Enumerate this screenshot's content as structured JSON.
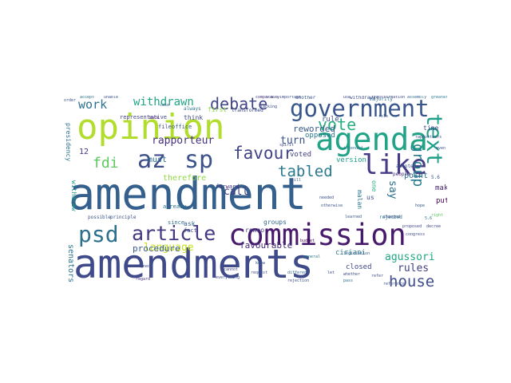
{
  "wordcloud": {
    "words": [
      {
        "text": "amendment",
        "color": "#35608d"
      },
      {
        "text": "amendments",
        "color": "#3e4a89"
      },
      {
        "text": "opinion",
        "color": "#b2dd2d"
      },
      {
        "text": "commission",
        "color": "#481a6c"
      },
      {
        "text": "agenda",
        "color": "#20a386"
      },
      {
        "text": "government",
        "color": "#39568c"
      },
      {
        "text": "az",
        "color": "#3d4e8a"
      },
      {
        "text": "sp",
        "color": "#3b528b"
      },
      {
        "text": "psd",
        "color": "#2d708e"
      },
      {
        "text": "article",
        "color": "#453781"
      },
      {
        "text": "text",
        "color": "#1f9e89"
      },
      {
        "text": "like",
        "color": "#443b84"
      },
      {
        "text": "vote",
        "color": "#29af7f"
      },
      {
        "text": "favour",
        "color": "#414487"
      },
      {
        "text": "debate",
        "color": "#404688"
      },
      {
        "text": "house",
        "color": "#3e4c8a"
      },
      {
        "text": "tabled",
        "color": "#2a788e"
      },
      {
        "text": "withdrawn",
        "color": "#22a785"
      },
      {
        "text": "work",
        "color": "#2c728e"
      },
      {
        "text": "fdi",
        "color": "#5ec962"
      },
      {
        "text": "group",
        "color": "#287c8e"
      },
      {
        "text": "language",
        "color": "#c8e020"
      },
      {
        "text": "agussori",
        "color": "#22a884"
      },
      {
        "text": "rules",
        "color": "#424186"
      },
      {
        "text": "rapporteur",
        "color": "#46327e"
      },
      {
        "text": "call",
        "color": "#404387"
      },
      {
        "text": "turn",
        "color": "#3b518b"
      },
      {
        "text": "say",
        "color": "#2e6e8e"
      },
      {
        "text": "procedure",
        "color": "#365c8d"
      },
      {
        "text": "favourable",
        "color": "#472c7a"
      },
      {
        "text": "reworded",
        "color": "#38588c"
      },
      {
        "text": "must",
        "color": "#2f6b8e"
      },
      {
        "text": "therefore",
        "color": "#90d743"
      },
      {
        "text": "senators",
        "color": "#2c738e"
      },
      {
        "text": "point",
        "color": "#306a8e"
      },
      {
        "text": "ciriani",
        "color": "#2a768e"
      },
      {
        "text": "closed",
        "color": "#3f4889"
      },
      {
        "text": "make",
        "color": "#482475"
      },
      {
        "text": "put",
        "color": "#440154"
      },
      {
        "text": "voted",
        "color": "#414287"
      },
      {
        "text": "version",
        "color": "#1fa088"
      },
      {
        "text": "opposed",
        "color": "#2b758e"
      },
      {
        "text": "rule",
        "color": "#3a548c"
      },
      {
        "text": "time",
        "color": "#3f4788"
      },
      {
        "text": "withdraw",
        "color": "#1f998a"
      },
      {
        "text": "ask",
        "color": "#32658e"
      },
      {
        "text": "groups",
        "color": "#31668e"
      },
      {
        "text": "romeo",
        "color": "#443983"
      },
      {
        "text": "one",
        "color": "#2ab07f"
      },
      {
        "text": "us",
        "color": "#3c4f8a"
      },
      {
        "text": "presidency",
        "color": "#2c728e"
      },
      {
        "text": "12",
        "color": "#463480"
      },
      {
        "text": "think",
        "color": "#3e4a89"
      },
      {
        "text": "first",
        "color": "#90d743"
      },
      {
        "text": "already",
        "color": "#2d708e"
      },
      {
        "text": "fact",
        "color": "#3b528b"
      },
      {
        "text": "since",
        "color": "#2f6c8e"
      },
      {
        "text": "forward",
        "color": "#46307e"
      },
      {
        "text": "office",
        "color": "#365d8d"
      },
      {
        "text": "file",
        "color": "#3d4d8a"
      },
      {
        "text": "representative",
        "color": "#404588"
      },
      {
        "text": "transformed",
        "color": "#3e4989"
      },
      {
        "text": "another",
        "color": "#3a548c"
      },
      {
        "text": "majority",
        "color": "#2c718e"
      },
      {
        "text": "withdrawal",
        "color": "#3d4e8a"
      },
      {
        "text": "people",
        "color": "#482576"
      },
      {
        "text": "adopted",
        "color": "#3c508b"
      },
      {
        "text": "rejected",
        "color": "#2b748e"
      },
      {
        "text": "possible",
        "color": "#39568c"
      },
      {
        "text": "principle",
        "color": "#3d4d8a"
      },
      {
        "text": "malan",
        "color": "#2b758e"
      },
      {
        "text": "legislation",
        "color": "#355f8d"
      },
      {
        "text": "otherwise",
        "color": "#3b528b"
      },
      {
        "text": "budget",
        "color": "#440154"
      },
      {
        "text": "always",
        "color": "#2c728e"
      },
      {
        "text": "changed",
        "color": "#3a548c"
      },
      {
        "text": "right",
        "color": "#5ec962"
      },
      {
        "text": "proposed",
        "color": "#404588"
      },
      {
        "text": "congress",
        "color": "#3d4e8a"
      },
      {
        "text": "transformation",
        "color": "#3f4788"
      },
      {
        "text": "assembly",
        "color": "#2f6b8e"
      },
      {
        "text": "important",
        "color": "#3b518b"
      },
      {
        "text": "general",
        "color": "#2a778e"
      },
      {
        "text": "comparably",
        "color": "#453882"
      },
      {
        "text": "whether",
        "color": "#3e4c8a"
      },
      {
        "text": "different",
        "color": "#31668e"
      },
      {
        "text": "everything",
        "color": "#3d4d8a"
      },
      {
        "text": "regard",
        "color": "#46337f"
      },
      {
        "text": "reference",
        "color": "#3c4f8a"
      },
      {
        "text": "accept",
        "color": "#2e6e8e"
      },
      {
        "text": "unable",
        "color": "#3b528b"
      },
      {
        "text": "order",
        "color": "#3a548c"
      },
      {
        "text": "back",
        "color": "#482173"
      },
      {
        "text": "case",
        "color": "#37598c"
      },
      {
        "text": "use",
        "color": "#3e4a89"
      },
      {
        "text": "role",
        "color": "#3b518b"
      },
      {
        "text": "pass",
        "color": "#2d708e"
      },
      {
        "text": "let",
        "color": "#3d4e8a"
      },
      {
        "text": "know",
        "color": "#39568c"
      },
      {
        "text": "5.6",
        "color": "#3b528b"
      },
      {
        "text": "5.6.6",
        "color": "#3e4c8a"
      },
      {
        "text": "5.6",
        "color": "#2a778e"
      },
      {
        "text": "rapporteurs",
        "color": "#3d4d8a"
      },
      {
        "text": "request",
        "color": "#3b518b"
      },
      {
        "text": "lacking",
        "color": "#3c4f8a"
      },
      {
        "text": "signed",
        "color": "#3e4a89"
      },
      {
        "text": "decree",
        "color": "#3f4788"
      },
      {
        "text": "spirit",
        "color": "#404588"
      },
      {
        "text": "intended",
        "color": "#2c718e"
      },
      {
        "text": "learned",
        "color": "#3a548c"
      },
      {
        "text": "needed",
        "color": "#3d4e8a"
      },
      {
        "text": "still",
        "color": "#3b528b"
      },
      {
        "text": "hope",
        "color": "#37598c"
      },
      {
        "text": "refer",
        "color": "#3e4c8a"
      },
      {
        "text": "even",
        "color": "#3c508b"
      },
      {
        "text": "cannot",
        "color": "#404588"
      },
      {
        "text": "greater",
        "color": "#2a778e"
      },
      {
        "text": "rejection",
        "color": "#3d4d8a"
      }
    ]
  }
}
